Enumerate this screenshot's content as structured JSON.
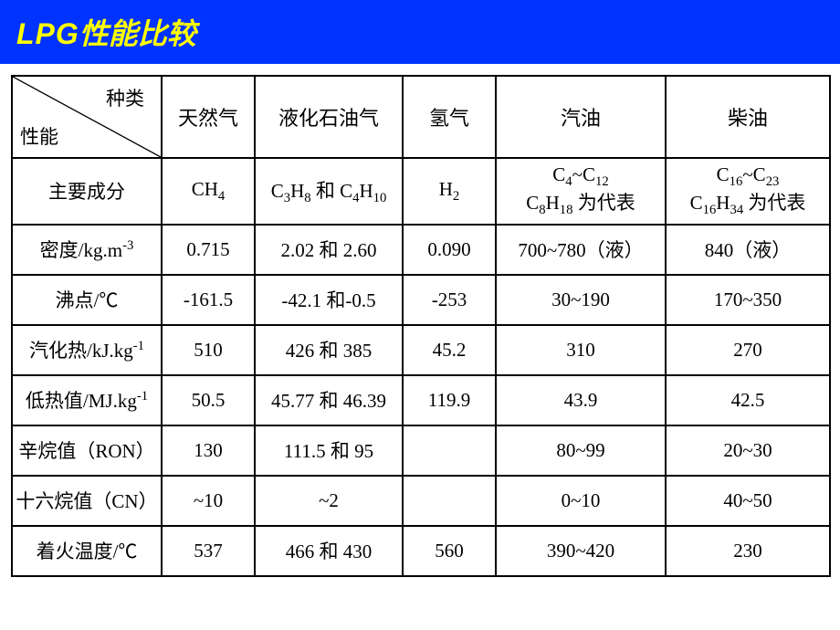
{
  "header": {
    "title_eng": "LPG",
    "title_chn": "性能比较",
    "bg_color": "#0033ff",
    "text_color": "#ffff00"
  },
  "table": {
    "corner": {
      "top": "种类",
      "bottom": "性能"
    },
    "columns": [
      "天然气",
      "液化石油气",
      "氢气",
      "汽油",
      "柴油"
    ],
    "rows": [
      {
        "label": "主要成分",
        "cells_html": [
          "CH<sub>4</sub>",
          "C<sub>3</sub>H<sub>8</sub> 和 C<sub>4</sub>H<sub>10</sub>",
          "H<sub>2</sub>",
          "C<sub>4</sub>~C<sub>12</sub><br>C<sub>8</sub>H<sub>18</sub> 为代表",
          "C<sub>16</sub>~C<sub>23</sub><br>C<sub>16</sub>H<sub>34</sub> 为代表"
        ],
        "class": "row-composition"
      },
      {
        "label_html": "密度/kg.m<sup>-3</sup>",
        "cells": [
          "0.715",
          "2.02 和 2.60",
          "0.090",
          "700~780（液）",
          "840（液）"
        ]
      },
      {
        "label": "沸点/℃",
        "cells": [
          "-161.5",
          "-42.1 和-0.5",
          "-253",
          "30~190",
          "170~350"
        ]
      },
      {
        "label_html": "汽化热/kJ.kg<sup>-1</sup>",
        "cells": [
          "510",
          "426 和 385",
          "45.2",
          "310",
          "270"
        ]
      },
      {
        "label_html": "低热值/MJ.kg<sup>-1</sup>",
        "cells": [
          "50.5",
          "45.77 和 46.39",
          "119.9",
          "43.9",
          "42.5"
        ]
      },
      {
        "label": "辛烷值（RON）",
        "cells": [
          "130",
          "111.5 和 95",
          "",
          "80~99",
          "20~30"
        ]
      },
      {
        "label": "十六烷值（CN）",
        "cells": [
          "~10",
          "~2",
          "",
          "0~10",
          "40~50"
        ]
      },
      {
        "label": "着火温度/℃",
        "cells": [
          "537",
          "466 和 430",
          "560",
          "390~420",
          "230"
        ]
      }
    ],
    "border_color": "#000000",
    "text_color": "#000000",
    "font_size": 21,
    "header_font_size": 22
  }
}
